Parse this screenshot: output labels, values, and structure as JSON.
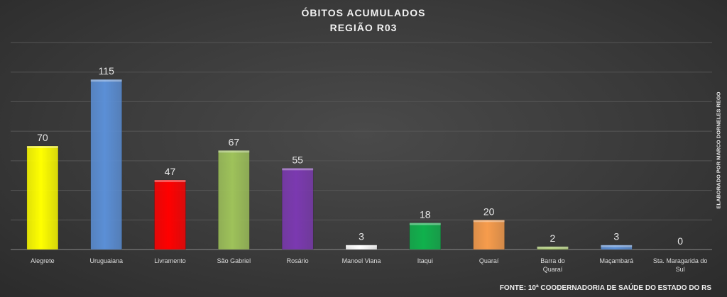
{
  "chart_data": {
    "type": "bar",
    "title": "ÓBITOS  ACUMULADOS",
    "subtitle": "REGIÃO  R03",
    "categories": [
      "Alegrete",
      "Uruguaiana",
      "Livramento",
      "São Gabriel",
      "Rosário",
      "Manoel Viana",
      "Itaqui",
      "Quaraí",
      "Barra do Quaraí",
      "Maçambará",
      "Sta. Maragarida do Sul"
    ],
    "values": [
      70,
      115,
      47,
      67,
      55,
      3,
      18,
      20,
      2,
      3,
      0
    ],
    "colors": [
      "#ffff00",
      "#5b8fd6",
      "#ff0000",
      "#9ec25a",
      "#7b39b0",
      "#ffffff",
      "#10b14c",
      "#f79c4c",
      "#9ec25a",
      "#5b8fd6",
      "#5b8fd6"
    ],
    "ylim": [
      0,
      140
    ],
    "grid": true,
    "side_label": "ELABORADO POR MARCO  DORNELES REGO",
    "source": "FONTE: 10ª COODERNADORIA DE SAÚDE DO ESTADO DO RS"
  }
}
